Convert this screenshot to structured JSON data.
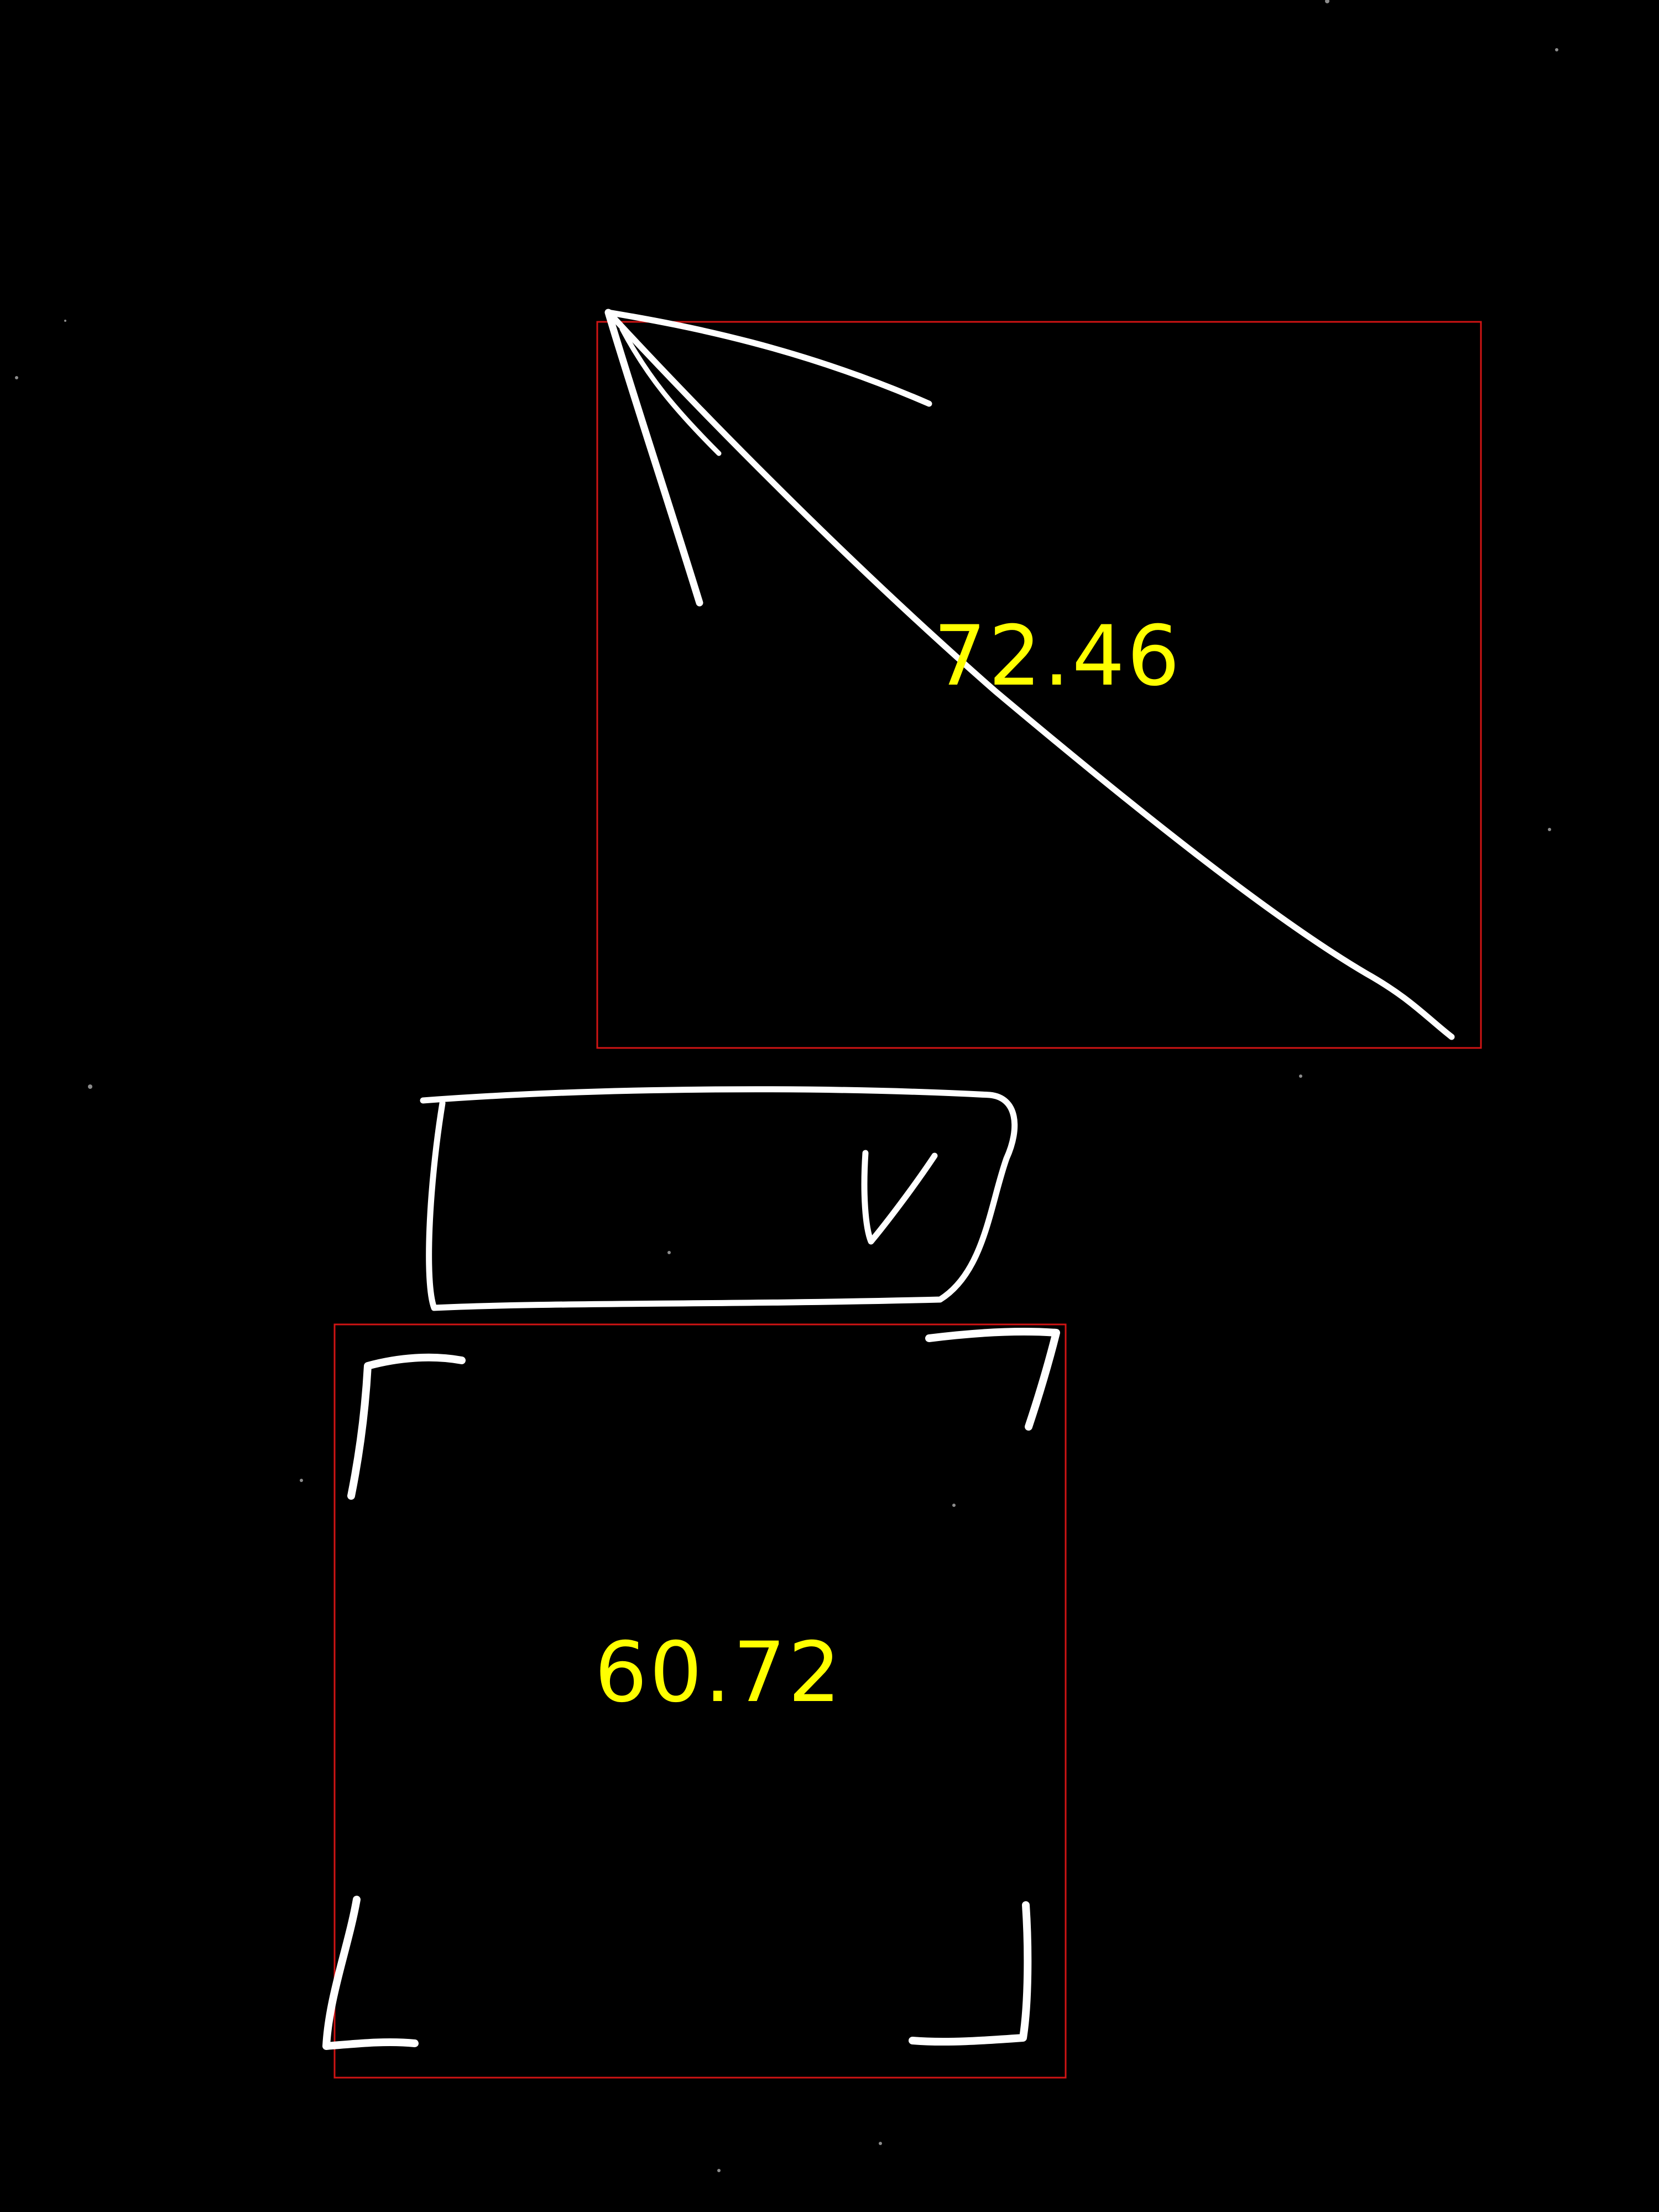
{
  "canvas": {
    "background": "#000000",
    "stroke_color": "#ffffff",
    "box_color": "#d01414",
    "label_color": "#ffff00"
  },
  "detections": [
    {
      "id": "arrow",
      "icon": "arrow-up-left-icon",
      "score": "72.46"
    },
    {
      "id": "dropdown",
      "icon": "dropdown-chevron-icon",
      "score": null
    },
    {
      "id": "expand",
      "icon": "fullscreen-corners-icon",
      "score": "60.72"
    }
  ]
}
